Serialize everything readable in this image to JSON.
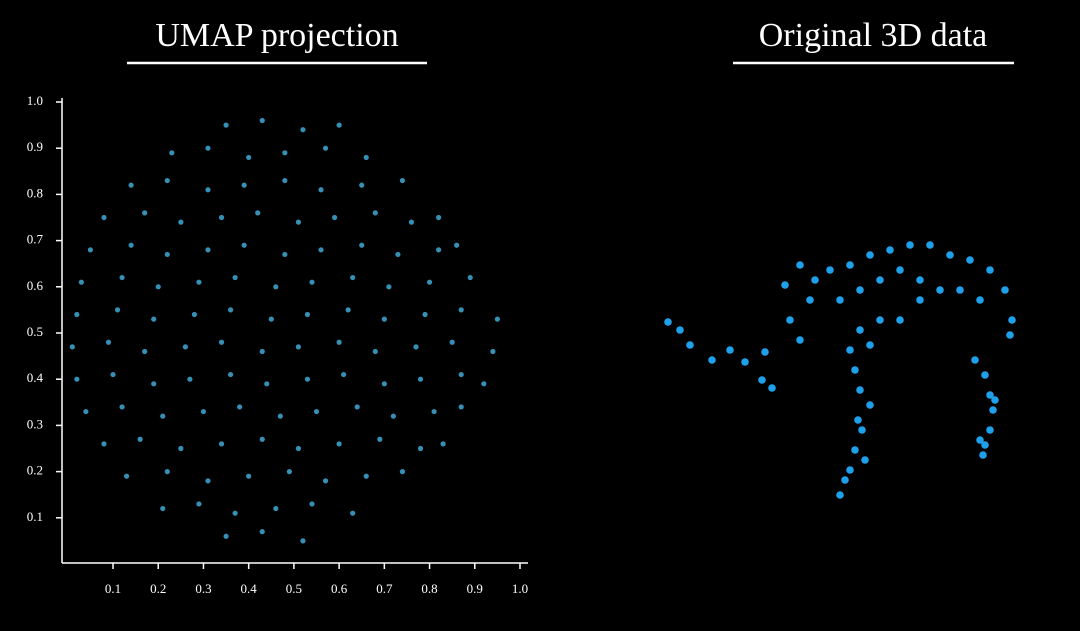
{
  "chart_data": [
    {
      "type": "scatter",
      "title": "UMAP projection",
      "color": "#3fa9d6",
      "xlim": [
        0,
        1
      ],
      "ylim": [
        0,
        1
      ],
      "xticks": [
        0.1,
        0.2,
        0.3,
        0.4,
        0.5,
        0.6,
        0.7,
        0.8,
        0.9,
        {
          "value": 1,
          "label": "1.0"
        }
      ],
      "yticks": [
        0.1,
        0.2,
        0.3,
        0.4,
        0.5,
        0.6,
        0.7,
        0.8,
        0.9,
        {
          "value": 1,
          "label": "1.0"
        }
      ],
      "x": [
        0.35,
        0.43,
        0.52,
        0.21,
        0.29,
        0.37,
        0.46,
        0.54,
        0.63,
        0.13,
        0.22,
        0.31,
        0.4,
        0.49,
        0.57,
        0.66,
        0.74,
        0.08,
        0.16,
        0.25,
        0.34,
        0.43,
        0.51,
        0.6,
        0.69,
        0.78,
        0.83,
        0.04,
        0.12,
        0.21,
        0.3,
        0.38,
        0.47,
        0.55,
        0.64,
        0.72,
        0.81,
        0.87,
        0.02,
        0.1,
        0.19,
        0.27,
        0.36,
        0.44,
        0.53,
        0.61,
        0.7,
        0.78,
        0.87,
        0.92,
        0.01,
        0.09,
        0.17,
        0.26,
        0.34,
        0.43,
        0.51,
        0.6,
        0.68,
        0.77,
        0.85,
        0.94,
        0.02,
        0.11,
        0.19,
        0.28,
        0.36,
        0.45,
        0.53,
        0.62,
        0.7,
        0.79,
        0.87,
        0.95,
        0.03,
        0.12,
        0.2,
        0.29,
        0.37,
        0.46,
        0.54,
        0.63,
        0.71,
        0.8,
        0.89,
        0.05,
        0.14,
        0.22,
        0.31,
        0.39,
        0.48,
        0.56,
        0.65,
        0.73,
        0.82,
        0.86,
        0.08,
        0.17,
        0.25,
        0.34,
        0.42,
        0.51,
        0.59,
        0.68,
        0.76,
        0.82,
        0.14,
        0.22,
        0.31,
        0.39,
        0.48,
        0.56,
        0.65,
        0.74,
        0.23,
        0.31,
        0.4,
        0.48,
        0.57,
        0.66,
        0.35,
        0.43,
        0.52,
        0.6
      ],
      "y": [
        0.06,
        0.07,
        0.05,
        0.12,
        0.13,
        0.11,
        0.12,
        0.13,
        0.11,
        0.19,
        0.2,
        0.18,
        0.19,
        0.2,
        0.18,
        0.19,
        0.2,
        0.26,
        0.27,
        0.25,
        0.26,
        0.27,
        0.25,
        0.26,
        0.27,
        0.25,
        0.26,
        0.33,
        0.34,
        0.32,
        0.33,
        0.34,
        0.32,
        0.33,
        0.34,
        0.32,
        0.33,
        0.34,
        0.4,
        0.41,
        0.39,
        0.4,
        0.41,
        0.39,
        0.4,
        0.41,
        0.39,
        0.4,
        0.41,
        0.39,
        0.47,
        0.48,
        0.46,
        0.47,
        0.48,
        0.46,
        0.47,
        0.48,
        0.46,
        0.47,
        0.48,
        0.46,
        0.54,
        0.55,
        0.53,
        0.54,
        0.55,
        0.53,
        0.54,
        0.55,
        0.53,
        0.54,
        0.55,
        0.53,
        0.61,
        0.62,
        0.6,
        0.61,
        0.62,
        0.6,
        0.61,
        0.62,
        0.6,
        0.61,
        0.62,
        0.68,
        0.69,
        0.67,
        0.68,
        0.69,
        0.67,
        0.68,
        0.69,
        0.67,
        0.68,
        0.69,
        0.75,
        0.76,
        0.74,
        0.75,
        0.76,
        0.74,
        0.75,
        0.76,
        0.74,
        0.75,
        0.82,
        0.83,
        0.81,
        0.82,
        0.83,
        0.81,
        0.82,
        0.83,
        0.89,
        0.9,
        0.88,
        0.89,
        0.9,
        0.88,
        0.95,
        0.96,
        0.94,
        0.95
      ]
    },
    {
      "type": "scatter",
      "title": "Original 3D data",
      "color": "#1ea0ea",
      "axes": false,
      "xlim": [
        0,
        400
      ],
      "ylim": [
        0,
        300
      ],
      "x": [
        28,
        40,
        50,
        72,
        90,
        105,
        125,
        132,
        122,
        145,
        160,
        170,
        150,
        160,
        175,
        190,
        210,
        230,
        250,
        270,
        290,
        310,
        330,
        350,
        365,
        372,
        370,
        200,
        220,
        240,
        260,
        280,
        300,
        220,
        240,
        260,
        280,
        320,
        340,
        210,
        230,
        215,
        220,
        230,
        222,
        215,
        210,
        200,
        205,
        225,
        218,
        335,
        345,
        350,
        353,
        350,
        345,
        343,
        340,
        355
      ],
      "y": [
        198,
        190,
        175,
        160,
        170,
        158,
        168,
        132,
        140,
        235,
        255,
        220,
        200,
        180,
        240,
        250,
        255,
        265,
        270,
        275,
        275,
        265,
        260,
        250,
        230,
        200,
        185,
        220,
        230,
        240,
        250,
        240,
        230,
        190,
        200,
        200,
        220,
        230,
        220,
        170,
        175,
        150,
        130,
        115,
        90,
        70,
        50,
        25,
        40,
        60,
        100,
        160,
        145,
        125,
        110,
        90,
        75,
        65,
        80,
        120
      ]
    }
  ]
}
